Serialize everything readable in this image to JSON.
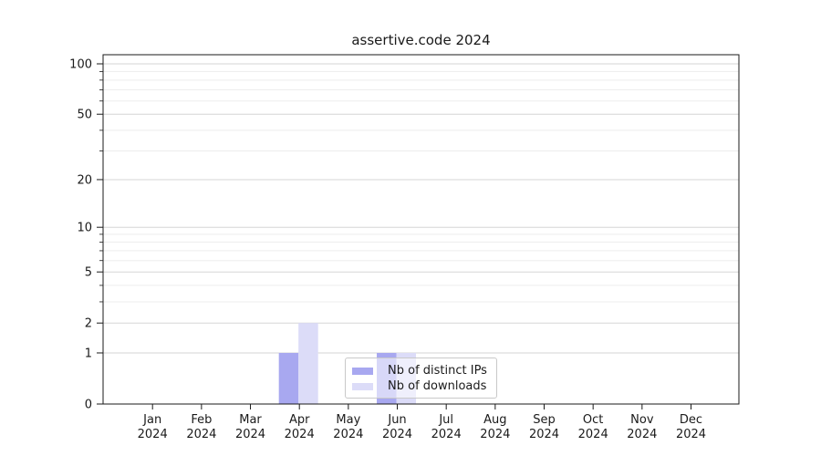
{
  "chart_data": {
    "type": "bar",
    "title": "assertive.code 2024",
    "categories": [
      "Jan",
      "Feb",
      "Mar",
      "Apr",
      "May",
      "Jun",
      "Jul",
      "Aug",
      "Sep",
      "Oct",
      "Nov",
      "Dec"
    ],
    "category_year": "2024",
    "series": [
      {
        "name": "Nb of distinct IPs",
        "color": "#a8a8f0",
        "values": [
          0,
          0,
          0,
          1,
          0,
          1,
          0,
          0,
          0,
          0,
          0,
          0
        ]
      },
      {
        "name": "Nb of downloads",
        "color": "#dcdcf8",
        "values": [
          0,
          0,
          0,
          2,
          0,
          1,
          0,
          0,
          0,
          0,
          0,
          0
        ]
      }
    ],
    "xlabel": "",
    "ylabel": "",
    "yscale": "log1p",
    "ylim": [
      0,
      113
    ],
    "yticks": [
      0,
      1,
      2,
      5,
      10,
      20,
      50,
      100
    ],
    "yticks_minor": [
      3,
      4,
      6,
      7,
      8,
      9,
      30,
      40,
      60,
      70,
      80,
      90
    ],
    "grid": "horizontal, major and minor, on",
    "legend_position": "lower center",
    "colors": {
      "background": "#ffffff",
      "grid_major": "#d6d6d6",
      "grid_minor": "#ededed",
      "axis": "#1a1a1a",
      "tick_text": "#1a1a1a"
    }
  }
}
